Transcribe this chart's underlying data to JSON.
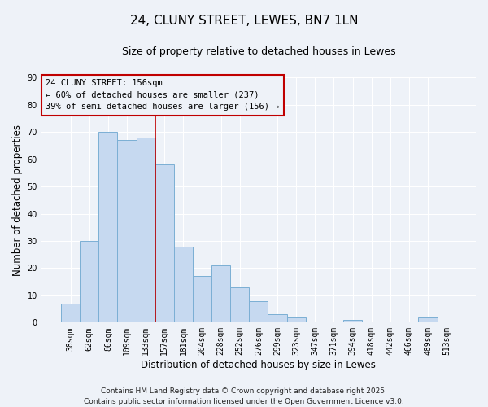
{
  "title": "24, CLUNY STREET, LEWES, BN7 1LN",
  "subtitle": "Size of property relative to detached houses in Lewes",
  "xlabel": "Distribution of detached houses by size in Lewes",
  "ylabel": "Number of detached properties",
  "categories": [
    "38sqm",
    "62sqm",
    "86sqm",
    "109sqm",
    "133sqm",
    "157sqm",
    "181sqm",
    "204sqm",
    "228sqm",
    "252sqm",
    "276sqm",
    "299sqm",
    "323sqm",
    "347sqm",
    "371sqm",
    "394sqm",
    "418sqm",
    "442sqm",
    "466sqm",
    "489sqm",
    "513sqm"
  ],
  "values": [
    7,
    30,
    70,
    67,
    68,
    58,
    28,
    17,
    21,
    13,
    8,
    3,
    2,
    0,
    0,
    1,
    0,
    0,
    0,
    2,
    0
  ],
  "bar_color": "#c6d9f0",
  "bar_edge_color": "#7bafd4",
  "vline_color": "#c00000",
  "annotation_box_color": "#c00000",
  "annotation_line1": "24 CLUNY STREET: 156sqm",
  "annotation_line2": "← 60% of detached houses are smaller (237)",
  "annotation_line3": "39% of semi-detached houses are larger (156) →",
  "ylim": [
    0,
    90
  ],
  "yticks": [
    0,
    10,
    20,
    30,
    40,
    50,
    60,
    70,
    80,
    90
  ],
  "background_color": "#eef2f8",
  "grid_color": "#ffffff",
  "footer_line1": "Contains HM Land Registry data © Crown copyright and database right 2025.",
  "footer_line2": "Contains public sector information licensed under the Open Government Licence v3.0.",
  "title_fontsize": 11,
  "subtitle_fontsize": 9,
  "axis_label_fontsize": 8.5,
  "tick_fontsize": 7,
  "annotation_fontsize": 7.5,
  "footer_fontsize": 6.5
}
